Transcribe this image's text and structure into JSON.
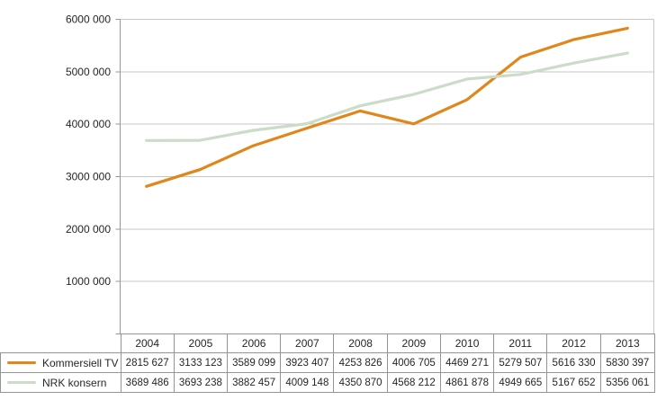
{
  "colors": {
    "kommersiell_tv": "#E0871C",
    "nrk_konsern": "#CBDCC8",
    "gridline": "#C6C6C6",
    "axis": "#969696",
    "table_border": "#949494",
    "text": "#262626"
  },
  "chart_data": {
    "type": "line",
    "title": "",
    "xlabel": "",
    "ylabel": "",
    "categories": [
      "2004",
      "2005",
      "2006",
      "2007",
      "2008",
      "2009",
      "2010",
      "2011",
      "2012",
      "2013"
    ],
    "series": [
      {
        "name": "Kommersiell TV",
        "color_key": "kommersiell_tv",
        "values": [
          2815627,
          3133123,
          3589099,
          3923407,
          4253826,
          4006705,
          4469271,
          5279507,
          5616330,
          5830397
        ]
      },
      {
        "name": "NRK konsern",
        "color_key": "nrk_konsern",
        "values": [
          3689486,
          3693238,
          3882457,
          4009148,
          4350870,
          4568212,
          4861878,
          4949665,
          5167652,
          5356061
        ]
      }
    ],
    "ylim": [
      0,
      6000000
    ],
    "ytick_step": 1000000,
    "ytick_labels_bottom_up": [
      "-",
      "1000 000",
      "2000 000",
      "3000 000",
      "4000 000",
      "5000 000",
      "6000 000"
    ],
    "grid": true,
    "legend_position": "table-left-column"
  },
  "table": {
    "header_years": [
      "2004",
      "2005",
      "2006",
      "2007",
      "2008",
      "2009",
      "2010",
      "2011",
      "2012",
      "2013"
    ],
    "rows": [
      {
        "label": "Kommersiell TV",
        "values": [
          "2815 627",
          "3133 123",
          "3589 099",
          "3923 407",
          "4253 826",
          "4006 705",
          "4469 271",
          "5279 507",
          "5616 330",
          "5830 397"
        ]
      },
      {
        "label": "NRK konsern",
        "values": [
          "3689 486",
          "3693 238",
          "3882 457",
          "4009 148",
          "4350 870",
          "4568 212",
          "4861 878",
          "4949 665",
          "5167 652",
          "5356 061"
        ]
      }
    ]
  }
}
